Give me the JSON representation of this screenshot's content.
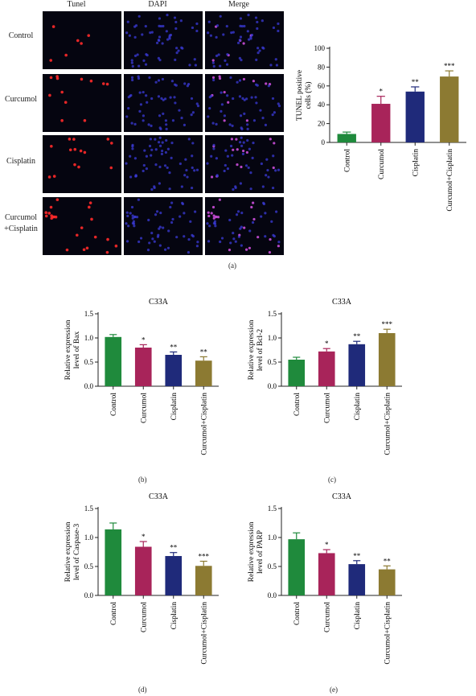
{
  "micrograph_panel": {
    "columns": [
      "Tunel",
      "DAPI",
      "Merge"
    ],
    "rows": [
      {
        "label_lines": [
          "Control"
        ],
        "tunel_count": 6
      },
      {
        "label_lines": [
          "Curcumol"
        ],
        "tunel_count": 12
      },
      {
        "label_lines": [
          "Cisplatin"
        ],
        "tunel_count": 14
      },
      {
        "label_lines": [
          "Curcumol",
          "+Cisplatin"
        ],
        "tunel_count": 22
      }
    ],
    "colors": {
      "tunel": "#ff2a2a",
      "dapi": "#3b3bd8",
      "merge": "#c04ad0",
      "background": "#050510"
    }
  },
  "panel_labels": [
    "(a)",
    "(b)",
    "(c)",
    "(d)",
    "(e)"
  ],
  "series_colors": [
    "#1f8a3c",
    "#a8245a",
    "#1f2a7a",
    "#8c7a32"
  ],
  "chart_data": [
    {
      "id": "a",
      "type": "bar",
      "title": "",
      "ylabel": "TUNEL positive cells (%)",
      "categories": [
        "Control",
        "Curcumol",
        "Cisplatin",
        "Curcumol+Cisplatin"
      ],
      "values": [
        9,
        41,
        54,
        70
      ],
      "errors": [
        2,
        8,
        5,
        6
      ],
      "significance": [
        "",
        "*",
        "**",
        "***"
      ],
      "ylim": [
        0,
        100
      ],
      "yticks": [
        0,
        20,
        40,
        60,
        80,
        100
      ]
    },
    {
      "id": "b",
      "type": "bar",
      "title": "C33A",
      "ylabel": "Relative expression level of Bax",
      "categories": [
        "Control",
        "Curcumol",
        "Cisplatin",
        "Curcumol+Cisplatin"
      ],
      "values": [
        1.02,
        0.8,
        0.65,
        0.53
      ],
      "errors": [
        0.05,
        0.06,
        0.06,
        0.08
      ],
      "significance": [
        "",
        "*",
        "**",
        "**"
      ],
      "ylim": [
        0,
        1.5
      ],
      "yticks": [
        "0.0",
        "0.5",
        "1.0",
        "1.5"
      ]
    },
    {
      "id": "c",
      "type": "bar",
      "title": "C33A",
      "ylabel": "Relative expression level of Bcl-2",
      "categories": [
        "Control",
        "Curcumol",
        "Cisplatin",
        "Curcumol+Cisplatin"
      ],
      "values": [
        0.55,
        0.72,
        0.87,
        1.1
      ],
      "errors": [
        0.05,
        0.06,
        0.06,
        0.08
      ],
      "significance": [
        "",
        "*",
        "**",
        "***"
      ],
      "ylim": [
        0,
        1.5
      ],
      "yticks": [
        "0.0",
        "0.5",
        "1.0",
        "1.5"
      ]
    },
    {
      "id": "d",
      "type": "bar",
      "title": "C33A",
      "ylabel": "Relative expression level of Caspase-3",
      "categories": [
        "Control",
        "Curcumol",
        "Cisplatin",
        "Curcumol+Cisplatin"
      ],
      "values": [
        1.14,
        0.84,
        0.68,
        0.51
      ],
      "errors": [
        0.11,
        0.09,
        0.06,
        0.08
      ],
      "significance": [
        "",
        "*",
        "**",
        "***"
      ],
      "ylim": [
        0,
        1.5
      ],
      "yticks": [
        "0.0",
        "0.5",
        "1.0",
        "1.5"
      ]
    },
    {
      "id": "e",
      "type": "bar",
      "title": "C33A",
      "ylabel": "Relative expression level of PARP",
      "categories": [
        "Control",
        "Curcumol",
        "Cisplatin",
        "Curcumol+Cisplatin"
      ],
      "values": [
        0.97,
        0.73,
        0.54,
        0.45
      ],
      "errors": [
        0.11,
        0.06,
        0.06,
        0.06
      ],
      "significance": [
        "",
        "*",
        "**",
        "**"
      ],
      "ylim": [
        0,
        1.5
      ],
      "yticks": [
        "0.0",
        "0.5",
        "1.0",
        "1.5"
      ]
    }
  ]
}
